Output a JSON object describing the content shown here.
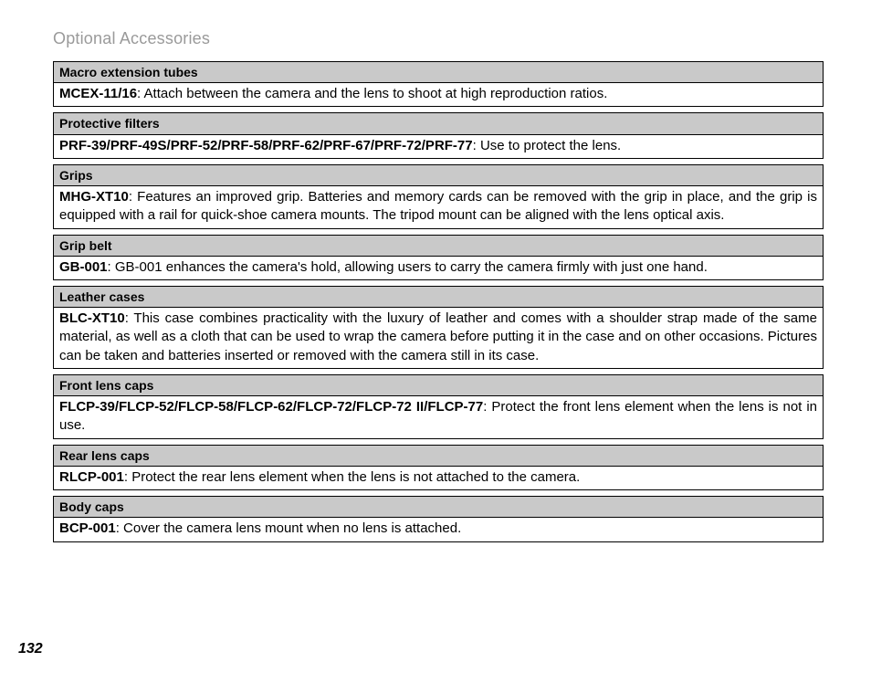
{
  "page_title": "Optional Accessories",
  "page_number": "132",
  "colors": {
    "header_bg": "#c9c9c9",
    "border": "#000000",
    "title": "#9a9a9a",
    "text": "#000000",
    "bg": "#ffffff"
  },
  "typography": {
    "title_fontsize": 18,
    "header_fontsize": 14,
    "body_fontsize": 15,
    "pagenum_fontsize": 16
  },
  "sections": [
    {
      "header": "Macro extension tubes",
      "model": "MCEX-11/16",
      "desc": ": Attach between the camera and the lens to shoot at high reproduction ratios."
    },
    {
      "header": "Protective filters",
      "model": "PRF-39/PRF-49S/PRF-52/PRF-58/PRF-62/PRF-67/PRF-72/PRF-77",
      "desc": ": Use to protect the lens."
    },
    {
      "header": "Grips",
      "model": "MHG-XT10",
      "desc": ": Features an improved grip.  Batteries and memory cards can be removed with the grip in place, and the grip is equipped with a rail for quick-shoe camera mounts.  The tripod mount can be aligned with the lens optical axis."
    },
    {
      "header": "Grip belt",
      "model": "GB-001",
      "desc": ": GB-001 enhances the camera's hold, allowing users to carry the camera firmly with just one hand."
    },
    {
      "header": "Leather cases",
      "model": "BLC-XT10",
      "desc": ": This case combines practicality with the luxury of leather and comes with a shoulder strap made of the same material, as well as a cloth that can be used to wrap the camera before putting it in the case and on other occasions.  Pictures can be taken and batteries inserted or removed with the camera still in its case."
    },
    {
      "header": "Front lens caps",
      "model": "FLCP-39/FLCP-52/FLCP-58/FLCP-62/FLCP-72/FLCP-72 II/FLCP-77",
      "desc": ": Protect the front lens element when the lens is not in use."
    },
    {
      "header": "Rear lens caps",
      "model": "RLCP-001",
      "desc": ": Protect the rear lens element when the lens is not attached to the camera."
    },
    {
      "header": "Body caps",
      "model": "BCP-001",
      "desc": ": Cover the camera lens mount when no lens is attached."
    }
  ]
}
